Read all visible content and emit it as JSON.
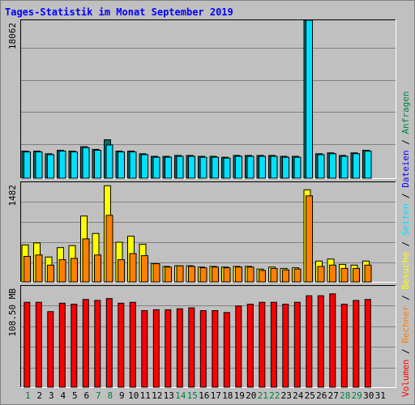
{
  "chart_data": {
    "type": "bar",
    "title": "Tages-Statistik im Monat September 2019",
    "days": [
      "1",
      "2",
      "3",
      "4",
      "5",
      "6",
      "7",
      "8",
      "9",
      "10",
      "11",
      "12",
      "13",
      "14",
      "15",
      "16",
      "17",
      "18",
      "19",
      "20",
      "21",
      "22",
      "23",
      "24",
      "25",
      "26",
      "27",
      "28",
      "29",
      "30",
      "31"
    ],
    "weekend_days": [
      1,
      7,
      8,
      14,
      15,
      21,
      22,
      28,
      29
    ],
    "colors": {
      "anfragen": "#066b6b",
      "dateien": "#00e0ff",
      "seiten": "#00e0ff",
      "besuche": "#ffff00",
      "rechner": "#ff8000",
      "volumen": "#ff0000",
      "weekday_label": "#000000",
      "weekend_label": "#008040"
    },
    "panels": [
      {
        "id": "top",
        "ymax_label": "18062",
        "ymax": 18062,
        "series": [
          {
            "name": "Anfragen",
            "color": "#066b6b",
            "values": [
              3100,
              3100,
              2800,
              3200,
              3100,
              3600,
              3300,
              4400,
              3100,
              3100,
              2800,
              2500,
              2500,
              2600,
              2600,
              2500,
              2500,
              2400,
              2600,
              2600,
              2600,
              2600,
              2500,
              2500,
              18062,
              2800,
              2900,
              2600,
              2900,
              3200,
              0
            ]
          },
          {
            "name": "Dateien",
            "color": "#00e0ff",
            "values": [
              3000,
              3000,
              2700,
              3100,
              3000,
              3500,
              3200,
              3800,
              3000,
              3000,
              2700,
              2400,
              2400,
              2500,
              2500,
              2400,
              2400,
              2300,
              2500,
              2500,
              2500,
              2500,
              2400,
              2400,
              18062,
              2700,
              2800,
              2500,
              2800,
              3100,
              0
            ]
          }
        ]
      },
      {
        "id": "middle",
        "ymax_label": "1482",
        "ymax": 1482,
        "series": [
          {
            "name": "Seiten",
            "color": "#00e0ff",
            "values": [
              0,
              0,
              0,
              0,
              0,
              0,
              0,
              0,
              0,
              0,
              0,
              0,
              0,
              0,
              0,
              0,
              0,
              0,
              0,
              0,
              0,
              0,
              0,
              0,
              0,
              0,
              0,
              0,
              0,
              0,
              0
            ]
          },
          {
            "name": "Besuche",
            "color": "#ffff00",
            "values": [
              550,
              580,
              370,
              510,
              540,
              980,
              720,
              1430,
              590,
              680,
              560,
              270,
              230,
              240,
              240,
              220,
              230,
              220,
              230,
              230,
              190,
              220,
              200,
              210,
              1370,
              310,
              340,
              260,
              250,
              310,
              0
            ]
          },
          {
            "name": "Rechner",
            "color": "#ff8000",
            "values": [
              380,
              400,
              250,
              330,
              350,
              640,
              400,
              990,
              330,
              420,
              390,
              270,
              220,
              240,
              230,
              210,
              220,
              210,
              220,
              220,
              170,
              200,
              180,
              190,
              1280,
              230,
              250,
              200,
              200,
              250,
              0
            ]
          }
        ]
      },
      {
        "id": "bottom",
        "ymax_label": "108.50 MB",
        "ymax": 108.5,
        "series": [
          {
            "name": "Volumen",
            "color": "#ff0000",
            "values": [
              91,
              91,
              81,
              90,
              89,
              94,
              93,
              95,
              90,
              91,
              82,
              83,
              83,
              84,
              85,
              82,
              82,
              80,
              87,
              89,
              91,
              91,
              89,
              91,
              98,
              98,
              100,
              89,
              93,
              94,
              0
            ]
          }
        ]
      }
    ],
    "legend": [
      {
        "label": "Volumen",
        "color": "#ff0000"
      },
      {
        "label": "/",
        "color": "#000000"
      },
      {
        "label": "Rechner",
        "color": "#ff8000"
      },
      {
        "label": "/",
        "color": "#000000"
      },
      {
        "label": "Besuche",
        "color": "#ffff00"
      },
      {
        "label": "/",
        "color": "#000000"
      },
      {
        "label": "Seiten",
        "color": "#00e0ff"
      },
      {
        "label": "/",
        "color": "#000000"
      },
      {
        "label": "Dateien",
        "color": "#0000ff"
      },
      {
        "label": "/",
        "color": "#000000"
      },
      {
        "label": "Anfragen",
        "color": "#008040"
      }
    ]
  }
}
